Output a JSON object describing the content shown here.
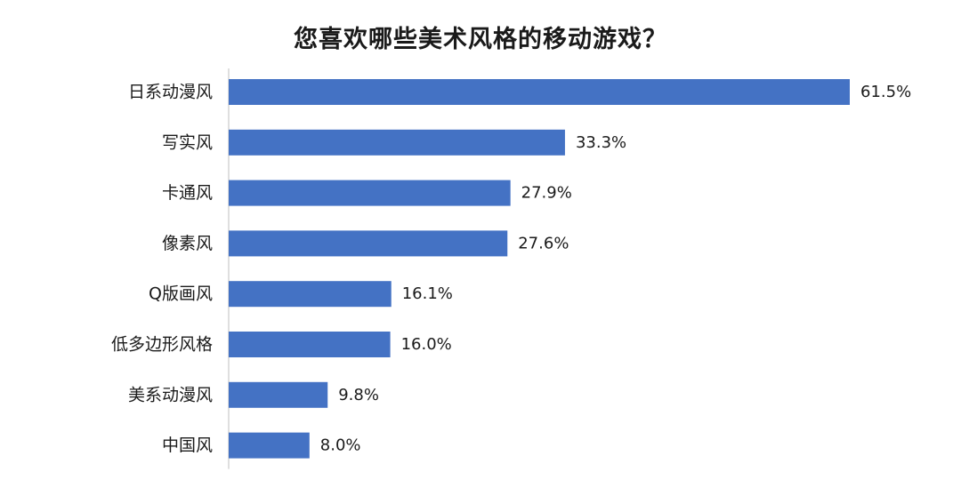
{
  "chart_data": {
    "type": "bar",
    "orientation": "horizontal",
    "title": "您喜欢哪些美术风格的移动游戏？",
    "categories": [
      "日系动漫风",
      "写实风",
      "卡通风",
      "像素风",
      "Q版画风",
      "低多边形风格",
      "美系动漫风",
      "中国风"
    ],
    "values": [
      61.5,
      33.3,
      27.9,
      27.6,
      16.1,
      16.0,
      9.8,
      8.0
    ],
    "value_labels": [
      "61.5%",
      "33.3%",
      "27.9%",
      "27.6%",
      "16.1%",
      "16.0%",
      "9.8%",
      "8.0%"
    ],
    "unit": "%",
    "xlim": [
      0,
      61.5
    ],
    "bar_color": "#4472c4",
    "grid": false,
    "legend": "none"
  }
}
